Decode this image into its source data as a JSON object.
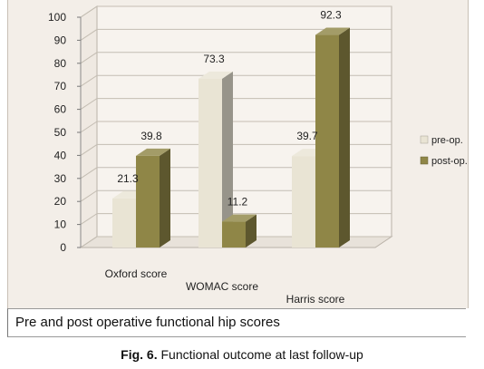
{
  "chart_data": {
    "type": "bar",
    "categories": [
      "Oxford score",
      "WOMAC score",
      "Harris score"
    ],
    "series": [
      {
        "name": "pre-op.",
        "values": [
          21.3,
          73.3,
          39.7
        ],
        "color": "#e9e4d4"
      },
      {
        "name": "post-op.",
        "values": [
          39.8,
          11.2,
          92.3
        ],
        "color": "#8f8647"
      }
    ],
    "ylim": [
      0,
      100
    ],
    "yticks": [
      0,
      10,
      20,
      30,
      40,
      50,
      60,
      70,
      80,
      90,
      100
    ],
    "legend": "right",
    "grid": true,
    "style": "3d"
  },
  "caption_box": "Pre and post operative functional hip scores",
  "figure": {
    "label": "Fig. 6.",
    "text": "Functional outcome at last follow-up"
  }
}
